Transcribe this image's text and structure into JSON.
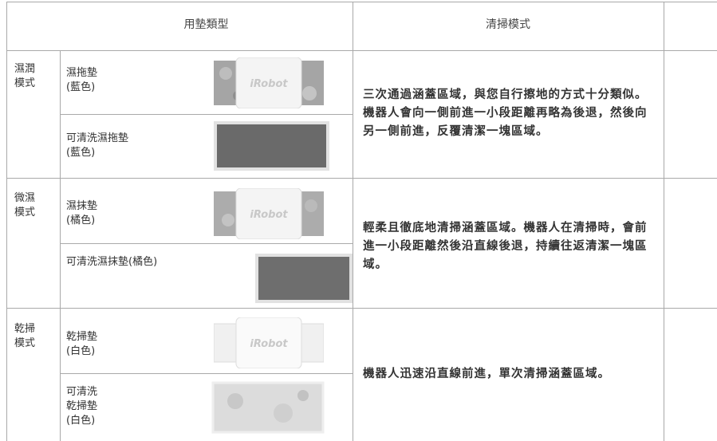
{
  "table": {
    "header": [
      "用墊類型",
      "清掃模式"
    ],
    "rows": [
      {
        "mode": "濕潤\n模式",
        "pads": [
          "濕拖墊\n(藍色)",
          "可清洗濕拖墊\n(藍色)"
        ],
        "description": "三次通過涵蓋區域，與您自行擦地的方式十分類似。機器人會向一側前進一小段距離再略為後退，然後向另一側前進，反覆清潔一塊區域。"
      },
      {
        "mode": "微濕\n模式",
        "pads": [
          "濕抹墊\n(橘色)",
          "可清洗濕抹墊(橘色)"
        ],
        "description": "輕柔且徹底地清掃涵蓋區域。機器人在清掃時，會前進一小段距離然後沿直線後退，持續往返清潔一塊區域。"
      },
      {
        "mode": "乾掃\n模式",
        "pads": [
          "乾掃墊\n(白色)",
          "可清洗\n乾掃墊\n(白色)"
        ],
        "description": "機器人迅速沿直線前進，單次清掃涵蓋區域。"
      }
    ]
  },
  "logo": "iRobot"
}
